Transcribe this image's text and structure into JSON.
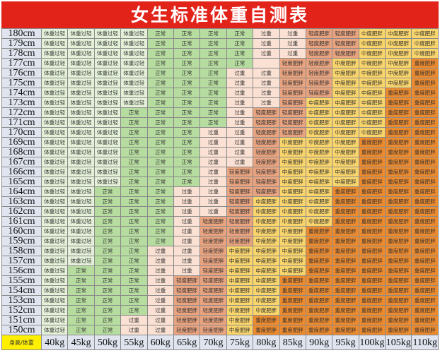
{
  "title": "女生标准体重自测表",
  "corner_label": "身高/体重",
  "weights": [
    "40kg",
    "45kg",
    "50kg",
    "55kg",
    "60kg",
    "65kg",
    "70kg",
    "75kg",
    "80kg",
    "85kg",
    "90kg",
    "95kg",
    "100kg",
    "105kg",
    "110kg"
  ],
  "categories": {
    "U": {
      "label": "体重过轻",
      "color": "#e4f1d8"
    },
    "N": {
      "label": "正常",
      "color": "#b6dc9f"
    },
    "O": {
      "label": "过重",
      "color": "#fbe1d3"
    },
    "M": {
      "label": "轻度肥胖",
      "color": "#e9a37f"
    },
    "D": {
      "label": "中度肥胖",
      "color": "#f9d56b"
    },
    "S": {
      "label": "重度肥胖",
      "color": "#ec8a2e"
    },
    "E": {
      "label": "",
      "color": "#fbe1d3"
    }
  },
  "rows": [
    {
      "height": "180cm",
      "cells": "UUUUNNNNOOMMDDD"
    },
    {
      "height": "179cm",
      "cells": "UUUUNNNNOOMMDDD"
    },
    {
      "height": "178cm",
      "cells": "UUUUNNNNOOMMDDD"
    },
    {
      "height": "177cm",
      "cells": "UUUUNNNNEMMDDDS"
    },
    {
      "height": "176cm",
      "cells": "UUUUNNNOOMMDDDS"
    },
    {
      "height": "175cm",
      "cells": "UUUUNNNOOMMDDDS"
    },
    {
      "height": "174cm",
      "cells": "UUUUNNNOOMMDDSS"
    },
    {
      "height": "173cm",
      "cells": "UUUUNNNOOMDDDSS"
    },
    {
      "height": "172cm",
      "cells": "UUUNNNNOMMDDDSS"
    },
    {
      "height": "171cm",
      "cells": "UUUNNNNOMMDDDSS"
    },
    {
      "height": "170cm",
      "cells": "UUUNNNOOMMDDDSS"
    },
    {
      "height": "169cm",
      "cells": "UUUNNNOOMDDDSSS"
    },
    {
      "height": "168cm",
      "cells": "UUUNNNOOMDDDSSS"
    },
    {
      "height": "167cm",
      "cells": "UUUNNNOOMDDDSSS"
    },
    {
      "height": "166cm",
      "cells": "UUUNNNOMMDDDSSS"
    },
    {
      "height": "165cm",
      "cells": "UUUNNNOMMDDDSSS"
    },
    {
      "height": "164cm",
      "cells": "UUNNNOOMMDDSSSS"
    },
    {
      "height": "163cm",
      "cells": "UUNNNOOMDDDSSSS"
    },
    {
      "height": "162cm",
      "cells": "UUNNNOOMDDDSSSS"
    },
    {
      "height": "161cm",
      "cells": "UUNNNOMMDDDSSSS"
    },
    {
      "height": "160cm",
      "cells": "UUNNNOMMDDSSSSS"
    },
    {
      "height": "159cm",
      "cells": "UUNNNOMMDDSSSSS"
    },
    {
      "height": "158cm",
      "cells": "UUNNOOMDDDSSSSS"
    },
    {
      "height": "157cm",
      "cells": "UUNNOOMDDDSSSSS"
    },
    {
      "height": "156cm",
      "cells": "UNNNOOMDDDSSSSS"
    },
    {
      "height": "155cm",
      "cells": "UNNNOMMDDSSSSSS"
    },
    {
      "height": "154cm",
      "cells": "UNNNOMMDDSSSSSS"
    },
    {
      "height": "153cm",
      "cells": "UNNNOMMDDSSSSSS"
    },
    {
      "height": "152cm",
      "cells": "UNNNOMMDDSSSSSS"
    },
    {
      "height": "151cm",
      "cells": "UNNOOMMDSSSSSSS"
    },
    {
      "height": "150cm",
      "cells": "UNNOOMMDSSSSSSS"
    }
  ]
}
